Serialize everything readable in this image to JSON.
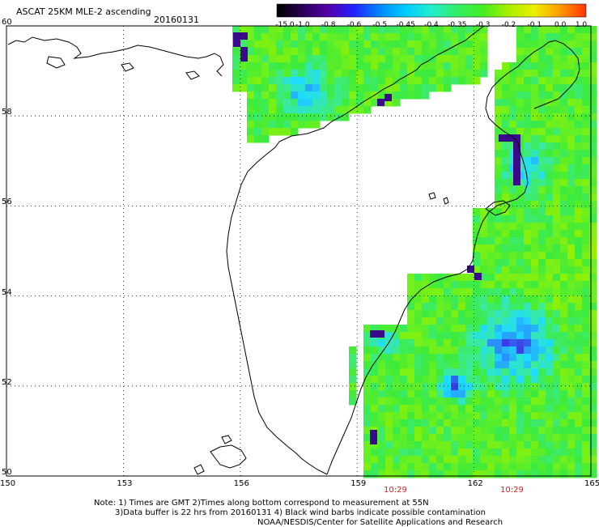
{
  "header": {
    "title": "ASCAT 25KM MLE-2 ascending",
    "date": "20160131"
  },
  "colorbar": {
    "labels": [
      "-15.0",
      "-1.0",
      "-0.8",
      "-0.6",
      "-0.5",
      "-0.45",
      "-0.4",
      "-0.35",
      "-0.3",
      "-0.2",
      "-0.1",
      "0.0",
      "1.0"
    ],
    "colors": [
      "#000000",
      "#2a0055",
      "#5500aa",
      "#2222ff",
      "#0088ff",
      "#00ccff",
      "#22eecc",
      "#33ee66",
      "#44ee22",
      "#aaee00",
      "#eeee00",
      "#ff9900",
      "#ff3300"
    ]
  },
  "map": {
    "x_ticks": [
      "150",
      "153",
      "156",
      "159",
      "162",
      "165"
    ],
    "y_ticks": [
      "60",
      "58",
      "56",
      "54",
      "52",
      "50"
    ],
    "time_labels": [
      "10:29",
      "10:29"
    ],
    "land_color": "#ffffff",
    "coast_color": "#000000",
    "grid": true
  },
  "notes": {
    "line1": "Note: 1) Times are GMT 2)Times along bottom correspond to measurement at 55N",
    "line2": "3)Data buffer is 22 hrs from 20160131 4) Black wind barbs indicate possible contamination",
    "line3": "NOAA/NESDIS/Center for Satellite Applications and Research"
  }
}
